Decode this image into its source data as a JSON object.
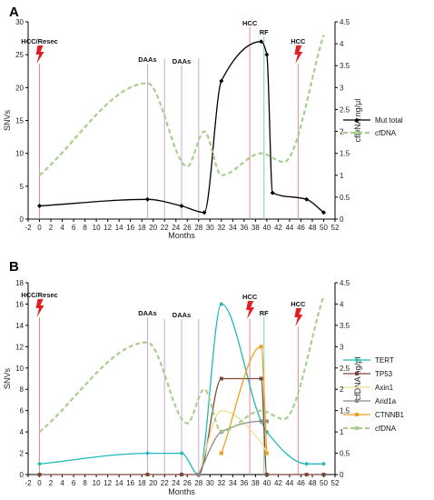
{
  "chart_data": [
    {
      "panel_label": "A",
      "type": "line",
      "xlabel": "Months",
      "ylabel": "SNVs",
      "y2label": "cfDNA ng/μl",
      "xlim": [
        -2,
        52
      ],
      "ylim": [
        0,
        30
      ],
      "y2lim": [
        0,
        4.5
      ],
      "x_ticks": [
        -2,
        0,
        2,
        4,
        6,
        8,
        10,
        12,
        14,
        16,
        18,
        20,
        22,
        24,
        26,
        28,
        30,
        32,
        34,
        36,
        38,
        40,
        42,
        44,
        46,
        48,
        50,
        52
      ],
      "y_ticks": [
        0,
        5,
        10,
        15,
        20,
        25,
        30
      ],
      "y2_ticks": [
        "0",
        "0.5",
        "1",
        "1.5",
        "2",
        "2.5",
        "3",
        "3.5",
        "4",
        "4.5"
      ],
      "series": [
        {
          "name": "Mut total",
          "color": "#000000",
          "style": "solid",
          "axis": "left",
          "marker": "diamond",
          "x": [
            0,
            19,
            25,
            29,
            32,
            39,
            40,
            41,
            47,
            50
          ],
          "y": [
            2,
            3,
            2,
            1,
            21,
            27,
            25,
            4,
            3,
            1
          ]
        },
        {
          "name": "cfDNA",
          "color": "#a8cf8e",
          "style": "dashed",
          "axis": "right",
          "marker": "square",
          "x": [
            0,
            19,
            26,
            29,
            32,
            39,
            43,
            50
          ],
          "y": [
            1,
            3.1,
            1.2,
            2,
            1,
            1.5,
            1.3,
            4.2
          ]
        }
      ],
      "events": [
        {
          "label": "HCC/Resec",
          "x": 0,
          "color": "#e58b8b",
          "bolt": true
        },
        {
          "label": "DAAs",
          "x": 19,
          "color": "#c4a8e0",
          "bolt": false
        },
        {
          "label": "",
          "x": 22,
          "color": "#c4a8e0",
          "bolt": false
        },
        {
          "label": "DAAs",
          "x": 25,
          "color": "#c4a8e0",
          "bolt": false
        },
        {
          "label": "",
          "x": 28,
          "color": "#c4a8e0",
          "bolt": false
        },
        {
          "label": "HCC",
          "x": 37,
          "color": "#e58b8b",
          "bolt": false
        },
        {
          "label": "RF",
          "x": 39.5,
          "color": "#7cd3a8",
          "bolt": false
        },
        {
          "label": "HCC",
          "x": 45.5,
          "color": "#e58b8b",
          "bolt": true
        }
      ],
      "legend_position": "right"
    },
    {
      "panel_label": "B",
      "type": "line",
      "xlabel": "Months",
      "ylabel": "SNVs",
      "y2label": "cfDNA ng/μl",
      "xlim": [
        -2,
        52
      ],
      "ylim": [
        0,
        18
      ],
      "y2lim": [
        0,
        4.5
      ],
      "x_ticks": [
        -2,
        0,
        2,
        4,
        6,
        8,
        10,
        12,
        14,
        16,
        18,
        20,
        22,
        24,
        26,
        28,
        30,
        32,
        34,
        36,
        38,
        40,
        42,
        44,
        46,
        48,
        50,
        52
      ],
      "y_ticks": [
        0,
        2,
        4,
        6,
        8,
        10,
        12,
        14,
        16,
        18
      ],
      "y2_ticks": [
        "0",
        "0.5",
        "1",
        "1.5",
        "2",
        "2.5",
        "3",
        "3.5",
        "4",
        "4.5"
      ],
      "series": [
        {
          "name": "TERT",
          "color": "#1fb9b9",
          "style": "solid",
          "axis": "left",
          "marker": "diamond",
          "x": [
            0,
            19,
            25,
            28,
            32,
            39,
            40,
            47,
            50
          ],
          "y": [
            1,
            2,
            2,
            0,
            16,
            5,
            4,
            1,
            1
          ]
        },
        {
          "name": "TP53",
          "color": "#7a4a3a",
          "style": "solid",
          "axis": "left",
          "marker": "square",
          "x": [
            0,
            19,
            25,
            28,
            32,
            39,
            40,
            47,
            50
          ],
          "y": [
            0,
            0,
            0,
            0,
            9,
            9,
            0,
            0,
            0
          ]
        },
        {
          "name": "Axin1",
          "color": "#f0e08c",
          "style": "solid",
          "axis": "left",
          "marker": "none",
          "x": [
            28,
            32,
            39,
            40
          ],
          "y": [
            0,
            6,
            3,
            2
          ]
        },
        {
          "name": "Arid1a",
          "color": "#8a8a8a",
          "style": "solid",
          "axis": "left",
          "marker": "square",
          "x": [
            28,
            32,
            39,
            40
          ],
          "y": [
            0,
            4,
            5,
            5
          ]
        },
        {
          "name": "CTNNB1",
          "color": "#f0a020",
          "style": "solid",
          "axis": "left",
          "marker": "square",
          "x": [
            32,
            39,
            40
          ],
          "y": [
            2,
            12,
            2
          ]
        },
        {
          "name": "cfDNA",
          "color": "#a8cf8e",
          "style": "dashed",
          "axis": "right",
          "marker": "square",
          "x": [
            0,
            19,
            26,
            29,
            32,
            39,
            43,
            50
          ],
          "y": [
            1,
            3.1,
            1.2,
            2,
            1,
            1.5,
            1.3,
            4.2
          ]
        }
      ],
      "events": [
        {
          "label": "HCC/Resec",
          "x": 0,
          "color": "#e58b8b",
          "bolt": true
        },
        {
          "label": "DAAs",
          "x": 19,
          "color": "#c4a8e0",
          "bolt": false
        },
        {
          "label": "",
          "x": 22,
          "color": "#c4a8e0",
          "bolt": false
        },
        {
          "label": "DAAs",
          "x": 25,
          "color": "#c4a8e0",
          "bolt": false
        },
        {
          "label": "",
          "x": 28,
          "color": "#c4a8e0",
          "bolt": false
        },
        {
          "label": "HCC",
          "x": 37,
          "color": "#e58b8b",
          "bolt": true
        },
        {
          "label": "RF",
          "x": 39.5,
          "color": "#7cd3a8",
          "bolt": false
        },
        {
          "label": "HCC",
          "x": 45.5,
          "color": "#e58b8b",
          "bolt": true
        }
      ],
      "legend_position": "right"
    }
  ]
}
